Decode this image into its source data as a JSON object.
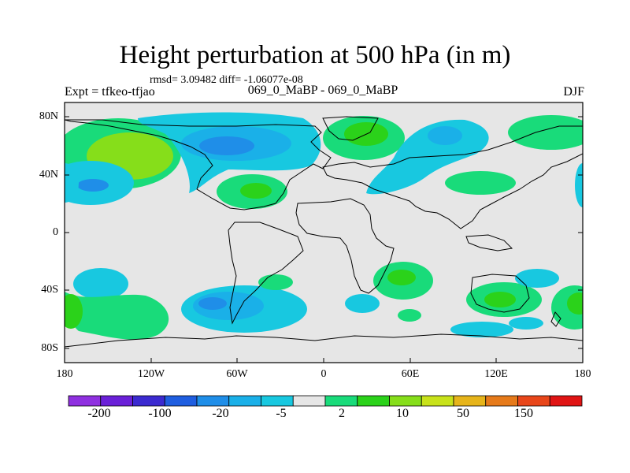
{
  "title": "Height perturbation at 500 hPa (in m)",
  "stats": "rmsd= 3.09482 diff= -1.06077e-08",
  "experiment": "Expt = tfkeo-tfjao",
  "period": "069_0_MaBP - 069_0_MaBP",
  "season": "DJF",
  "lat_labels": [
    "80N",
    "40N",
    "0",
    "40S",
    "80S"
  ],
  "lon_labels": [
    "180",
    "120W",
    "60W",
    "0",
    "60E",
    "120E",
    "180"
  ],
  "colorbar": {
    "colors": [
      "#8f30e0",
      "#6a20d8",
      "#3b2ad0",
      "#1f5ee0",
      "#1f8ee8",
      "#1ab0e8",
      "#18c8e0",
      "#e6e6e6",
      "#19db7a",
      "#2bd21a",
      "#86de1a",
      "#c8e21a",
      "#e6b41a",
      "#e67a1a",
      "#e8461a",
      "#e01414"
    ],
    "labels": [
      "-200",
      "-100",
      "-20",
      "-5",
      "2",
      "10",
      "50",
      "150"
    ]
  }
}
